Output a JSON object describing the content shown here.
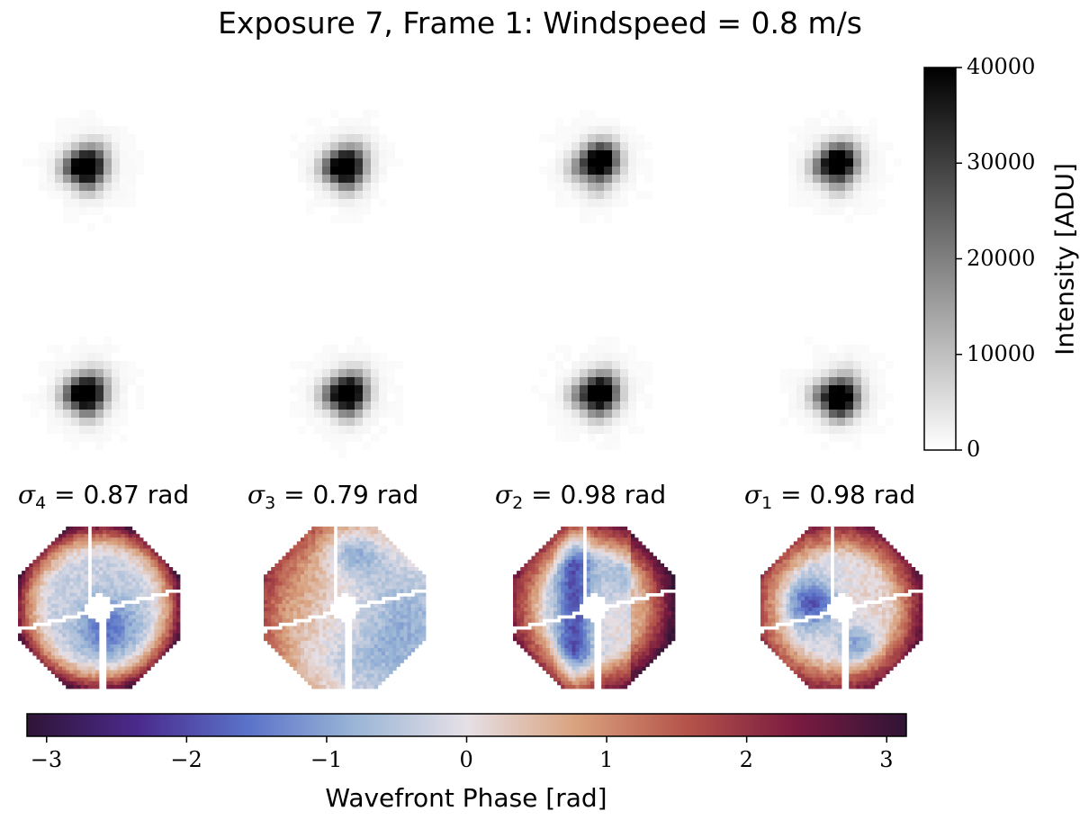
{
  "title": "Exposure 7, Frame 1: Windspeed = 0.8 m/s",
  "chart_data": {
    "type": "heatmap",
    "title": "Exposure 7, Frame 1: Windspeed = 0.8 m/s",
    "psf_panels": {
      "rows": 2,
      "columns": 4,
      "row_1_peak_offsets": [
        [
          0,
          0
        ],
        [
          0,
          0
        ],
        [
          0.5,
          -0.6
        ],
        [
          0.2,
          -0.4
        ]
      ],
      "row_2_peak_offsets": [
        [
          0,
          0
        ],
        [
          0.2,
          0
        ],
        [
          0.5,
          0
        ],
        [
          0.4,
          0.5
        ]
      ]
    },
    "intensity_colorbar": {
      "label": "Intensity [ADU]",
      "ticks": [
        "0",
        "10000",
        "20000",
        "30000",
        "40000"
      ],
      "range": [
        0,
        40000
      ],
      "colormap": "gray_r"
    },
    "wavefronts": [
      {
        "sym": "σ",
        "sub": "4",
        "value": "= 0.87 rad",
        "pattern": 1
      },
      {
        "sym": "σ",
        "sub": "3",
        "value": "= 0.79 rad",
        "pattern": 2
      },
      {
        "sym": "σ",
        "sub": "2",
        "value": "= 0.98 rad",
        "pattern": 3
      },
      {
        "sym": "σ",
        "sub": "1",
        "value": "= 0.98 rad",
        "pattern": 4
      }
    ],
    "phase_colorbar": {
      "label": "Wavefront Phase [rad]",
      "ticks": [
        "−3",
        "−2",
        "−1",
        "0",
        "1",
        "2",
        "3"
      ],
      "range": [
        -3.14,
        3.14
      ],
      "colormap": "twilight_shifted",
      "color_stops": [
        "#2f1436",
        "#4a2a8c",
        "#5a72c8",
        "#9bb6d6",
        "#e6e0e6",
        "#d9a27e",
        "#b5534a",
        "#7a1b40",
        "#2f1436"
      ]
    }
  }
}
